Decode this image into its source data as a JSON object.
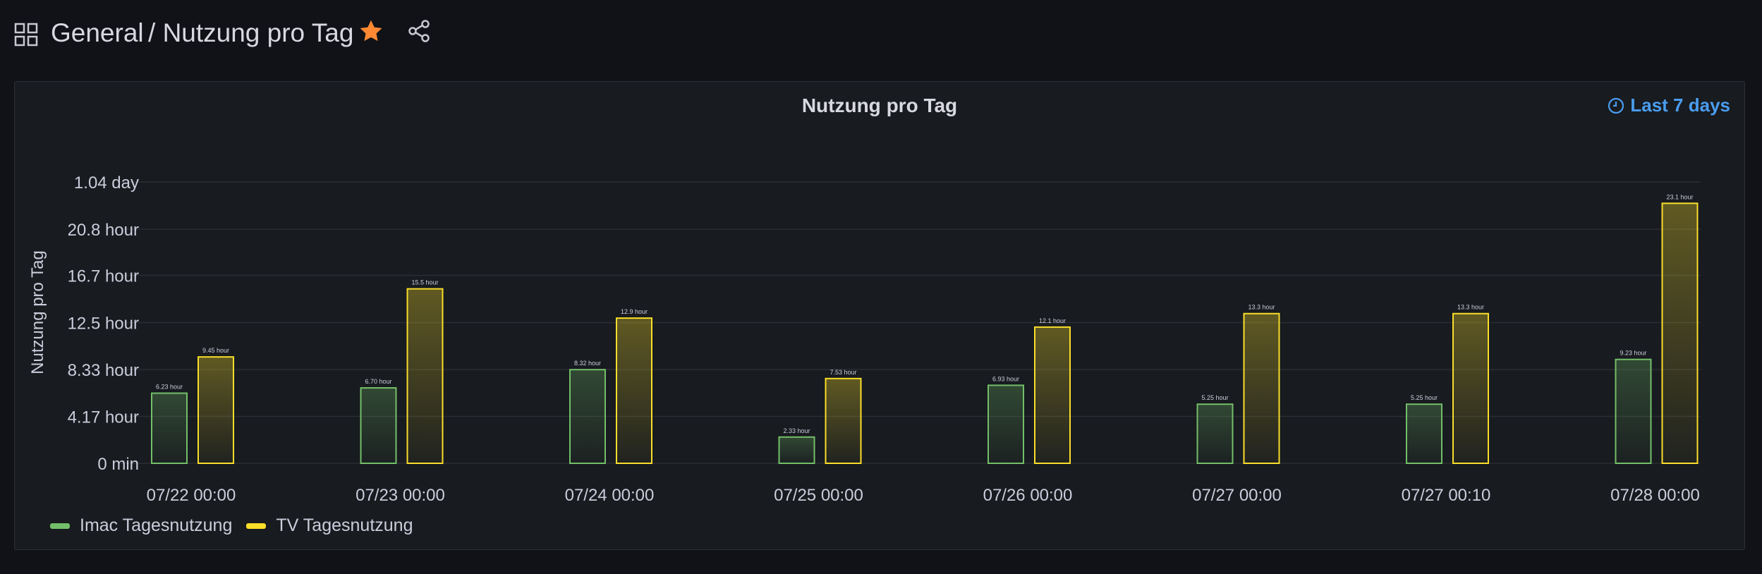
{
  "breadcrumb": {
    "folder": "General",
    "separator": "/",
    "dashboard": "Nutzung pro Tag"
  },
  "icons": {
    "apps": "grid-icon",
    "star": "star-icon",
    "share": "share-icon",
    "clock": "clock-icon"
  },
  "colors": {
    "imac": "#73bf69",
    "tv": "#fade2a",
    "star": "#ff8833",
    "time_range": "#4a9df0"
  },
  "panel": {
    "title": "Nutzung pro Tag",
    "time_range": "Last 7 days"
  },
  "chart_data": {
    "type": "bar",
    "title": "Nutzung pro Tag",
    "ylabel": "Nutzung pro Tag",
    "xlabel": "",
    "y_unit": "hour",
    "ylim": [
      0,
      25
    ],
    "y_ticks": [
      {
        "value": 0,
        "label": "0 min"
      },
      {
        "value": 4.17,
        "label": "4.17 hour"
      },
      {
        "value": 8.33,
        "label": "8.33 hour"
      },
      {
        "value": 12.5,
        "label": "12.5 hour"
      },
      {
        "value": 16.7,
        "label": "16.7 hour"
      },
      {
        "value": 20.8,
        "label": "20.8 hour"
      },
      {
        "value": 25,
        "label": "1.04 day"
      }
    ],
    "categories": [
      "07/22 00:00",
      "07/23 00:00",
      "07/24 00:00",
      "07/25 00:00",
      "07/26 00:00",
      "07/27 00:00",
      "07/27 00:10",
      "07/28 00:00"
    ],
    "series": [
      {
        "name": "Imac Tagesnutzung",
        "values": [
          6.23,
          6.7,
          8.32,
          2.33,
          6.93,
          5.25,
          5.25,
          9.23
        ],
        "labels": [
          "6.23 hour",
          "6.70 hour",
          "8.32 hour",
          "2.33 hour",
          "6.93 hour",
          "5.25 hour",
          "5.25 hour",
          "9.23 hour"
        ]
      },
      {
        "name": "TV Tagesnutzung",
        "values": [
          9.45,
          15.5,
          12.9,
          7.53,
          12.1,
          13.3,
          13.3,
          23.1
        ],
        "labels": [
          "9.45 hour",
          "15.5 hour",
          "12.9 hour",
          "7.53 hour",
          "12.1 hour",
          "13.3 hour",
          "13.3 hour",
          "23.1 hour"
        ]
      }
    ],
    "grid": true,
    "legend": "bottom-left"
  }
}
